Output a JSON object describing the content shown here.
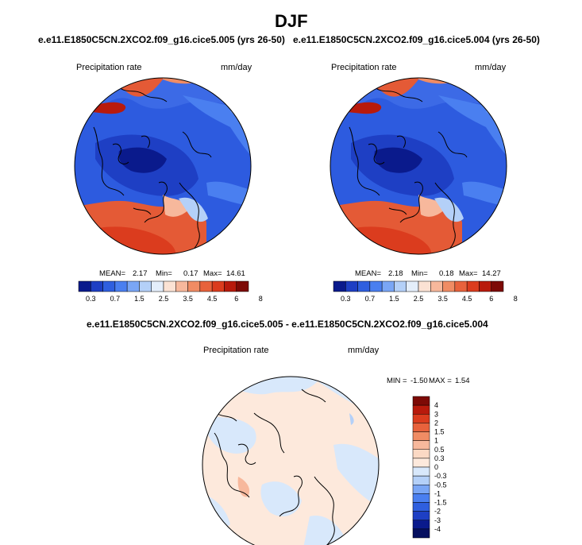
{
  "page": {
    "season": "DJF",
    "panel_left_case": "e.e11.E1850C5CN.2XCO2.f09_g16.cice5.005 (yrs 26-50)",
    "panel_right_case": "e.e11.E1850C5CN.2XCO2.f09_g16.cice5.004 (yrs 26-50)",
    "diff_title": "e.e11.E1850C5CN.2XCO2.f09_g16.cice5.005 - e.e11.E1850C5CN.2XCO2.f09_g16.cice5.004"
  },
  "chart_data": [
    {
      "type": "heatmap",
      "projection": "polar-stereographic-north",
      "title": "Precipitation rate",
      "units": "mm/day",
      "stats": {
        "mean": 2.17,
        "min": 0.17,
        "max": 14.61
      },
      "stats_text": {
        "mean_label": "MEAN=",
        "mean": "2.17",
        "min_label": "Min=",
        "min": "0.17",
        "max_label": "Max=",
        "max": "14.61"
      },
      "colorbar_levels": [
        "0.3",
        "0.7",
        "1.5",
        "2.5",
        "3.5",
        "4.5",
        "6",
        "8"
      ],
      "colorbar_colors": [
        "#0a1a8c",
        "#1e3fc4",
        "#2f5fdf",
        "#4a7ff0",
        "#7aa6f5",
        "#b4d0f8",
        "#e4eefb",
        "#fbe2d4",
        "#f7b89c",
        "#f08c64",
        "#e8623c",
        "#db3c1e",
        "#b81a0c",
        "#7d0a06"
      ]
    },
    {
      "type": "heatmap",
      "projection": "polar-stereographic-north",
      "title": "Precipitation rate",
      "units": "mm/day",
      "stats": {
        "mean": 2.18,
        "min": 0.18,
        "max": 14.27
      },
      "stats_text": {
        "mean_label": "MEAN=",
        "mean": "2.18",
        "min_label": "Min=",
        "min": "0.18",
        "max_label": "Max=",
        "max": "14.27"
      },
      "colorbar_levels": [
        "0.3",
        "0.7",
        "1.5",
        "2.5",
        "3.5",
        "4.5",
        "6",
        "8"
      ],
      "colorbar_colors": [
        "#0a1a8c",
        "#1e3fc4",
        "#2f5fdf",
        "#4a7ff0",
        "#7aa6f5",
        "#b4d0f8",
        "#e4eefb",
        "#fbe2d4",
        "#f7b89c",
        "#f08c64",
        "#e8623c",
        "#db3c1e",
        "#b81a0c",
        "#7d0a06"
      ]
    },
    {
      "type": "heatmap",
      "projection": "polar-stereographic-north",
      "title": "Precipitation rate",
      "units": "mm/day",
      "stats": {
        "min": -1.5,
        "max": 1.54
      },
      "stats_text": {
        "min_label": "MIN =",
        "min": "-1.50",
        "max_label": "MAX =",
        "max": "1.54"
      },
      "colorbar_levels": [
        "4",
        "3",
        "2",
        "1.5",
        "1",
        "0.5",
        "0.3",
        "0",
        "-0.3",
        "-0.5",
        "-1",
        "-1.5",
        "-2",
        "-3",
        "-4"
      ],
      "colorbar_colors": [
        "#7d0a06",
        "#b81a0c",
        "#db3c1e",
        "#e8623c",
        "#f08c64",
        "#f7b89c",
        "#fbd9c4",
        "#fde9dc",
        "#d8e8fb",
        "#b4d0f8",
        "#7aa6f5",
        "#4a7ff0",
        "#2f5fdf",
        "#1e3fc4",
        "#0a1a8c",
        "#061060"
      ]
    }
  ]
}
